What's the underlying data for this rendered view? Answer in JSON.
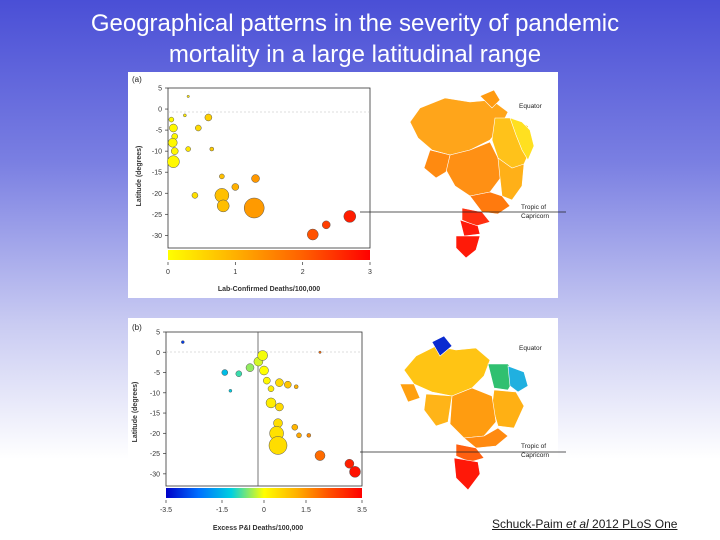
{
  "title_line1": "Geographical patterns in the severity of pandemic",
  "title_line2": "mortality in a large latitudinal range",
  "citation_prefix": "Schuck-Paim ",
  "citation_italic": "et al",
  "citation_suffix": " 2012 PLoS One",
  "chart_data": [
    {
      "type": "scatter",
      "panel_label": "(a)",
      "xlabel": "Lab-Confirmed Deaths/100,000",
      "ylabel": "Latitude (degrees)",
      "xlim": [
        0,
        3
      ],
      "ylim": [
        -33,
        5
      ],
      "xticks": [
        "0",
        "1",
        "2",
        "3"
      ],
      "yticks": [
        "5",
        "0",
        "-5",
        "-10",
        "-15",
        "-20",
        "-25",
        "-30"
      ],
      "colorbar": {
        "min": 0,
        "max": 3,
        "colors": [
          "#ffff00",
          "#ffb000",
          "#ff6000",
          "#ff0000"
        ]
      },
      "map_labels": [
        "Equator",
        "Tropic of",
        "Capricorn"
      ],
      "points": [
        {
          "x": 0.05,
          "y": -2.5,
          "size": 2.5
        },
        {
          "x": 0.08,
          "y": -4.5,
          "size": 4
        },
        {
          "x": 0.1,
          "y": -6.5,
          "size": 3
        },
        {
          "x": 0.07,
          "y": -8.0,
          "size": 4.5
        },
        {
          "x": 0.1,
          "y": -10.0,
          "size": 3.5
        },
        {
          "x": 0.08,
          "y": -12.5,
          "size": 6
        },
        {
          "x": 0.25,
          "y": -1.5,
          "size": 1.5
        },
        {
          "x": 0.3,
          "y": -9.5,
          "size": 2.5
        },
        {
          "x": 0.45,
          "y": -4.5,
          "size": 3
        },
        {
          "x": 0.6,
          "y": -2.0,
          "size": 3.5
        },
        {
          "x": 0.65,
          "y": -9.5,
          "size": 2
        },
        {
          "x": 0.4,
          "y": -20.5,
          "size": 3
        },
        {
          "x": 0.8,
          "y": -20.5,
          "size": 7
        },
        {
          "x": 0.82,
          "y": -23.0,
          "size": 6
        },
        {
          "x": 0.8,
          "y": -16.0,
          "size": 2.5
        },
        {
          "x": 1.0,
          "y": -18.5,
          "size": 3.5
        },
        {
          "x": 1.3,
          "y": -16.5,
          "size": 4
        },
        {
          "x": 1.28,
          "y": -23.5,
          "size": 10
        },
        {
          "x": 2.15,
          "y": -29.8,
          "size": 5.5
        },
        {
          "x": 2.35,
          "y": -27.5,
          "size": 4
        },
        {
          "x": 2.7,
          "y": -25.5,
          "size": 6
        },
        {
          "x": 0.3,
          "y": 3.0,
          "size": 1.2
        }
      ]
    },
    {
      "type": "scatter",
      "panel_label": "(b)",
      "xlabel": "Excess P&I Deaths/100,000",
      "ylabel": "Latitude (degrees)",
      "xlim": [
        -3.5,
        3.5
      ],
      "ylim": [
        -33,
        5
      ],
      "xticks": [
        "-3.5",
        "-1.5",
        "0",
        "1.5",
        "3.5"
      ],
      "yticks": [
        "5",
        "0",
        "-5",
        "-10",
        "-15",
        "-20",
        "-25",
        "-30"
      ],
      "colorbar": {
        "min": -3.5,
        "max": 3.5,
        "colors": [
          "#0000c8",
          "#0070ff",
          "#00d0e0",
          "#ffff00",
          "#ffb000",
          "#ff5000",
          "#ff0000"
        ]
      },
      "map_labels": [
        "Equator",
        "Tropic of",
        "Capricorn"
      ],
      "points": [
        {
          "x": -2.9,
          "y": 2.5,
          "size": 1.5
        },
        {
          "x": -1.4,
          "y": -5.0,
          "size": 3
        },
        {
          "x": -0.9,
          "y": -5.3,
          "size": 3
        },
        {
          "x": -0.5,
          "y": -3.8,
          "size": 4
        },
        {
          "x": -0.2,
          "y": -2.3,
          "size": 4.5
        },
        {
          "x": -0.05,
          "y": -0.8,
          "size": 5
        },
        {
          "x": 0.0,
          "y": -4.5,
          "size": 4.5
        },
        {
          "x": -1.2,
          "y": -9.5,
          "size": 1.5
        },
        {
          "x": 0.1,
          "y": -7.0,
          "size": 3.5
        },
        {
          "x": 0.25,
          "y": -9.0,
          "size": 3
        },
        {
          "x": 0.55,
          "y": -7.5,
          "size": 4
        },
        {
          "x": 0.85,
          "y": -8.0,
          "size": 3.5
        },
        {
          "x": 1.15,
          "y": -8.5,
          "size": 2
        },
        {
          "x": 0.25,
          "y": -12.5,
          "size": 5
        },
        {
          "x": 0.55,
          "y": -13.5,
          "size": 4
        },
        {
          "x": 0.5,
          "y": -17.5,
          "size": 4.5
        },
        {
          "x": 0.45,
          "y": -20.0,
          "size": 7
        },
        {
          "x": 0.5,
          "y": -23.0,
          "size": 9
        },
        {
          "x": 1.1,
          "y": -18.5,
          "size": 3
        },
        {
          "x": 1.25,
          "y": -20.5,
          "size": 2.5
        },
        {
          "x": 2.0,
          "y": 0.0,
          "size": 1.2
        },
        {
          "x": 2.0,
          "y": -25.5,
          "size": 5
        },
        {
          "x": 3.05,
          "y": -27.5,
          "size": 4.5
        },
        {
          "x": 3.25,
          "y": -29.5,
          "size": 5.5
        },
        {
          "x": 1.6,
          "y": -20.5,
          "size": 2
        }
      ]
    }
  ]
}
